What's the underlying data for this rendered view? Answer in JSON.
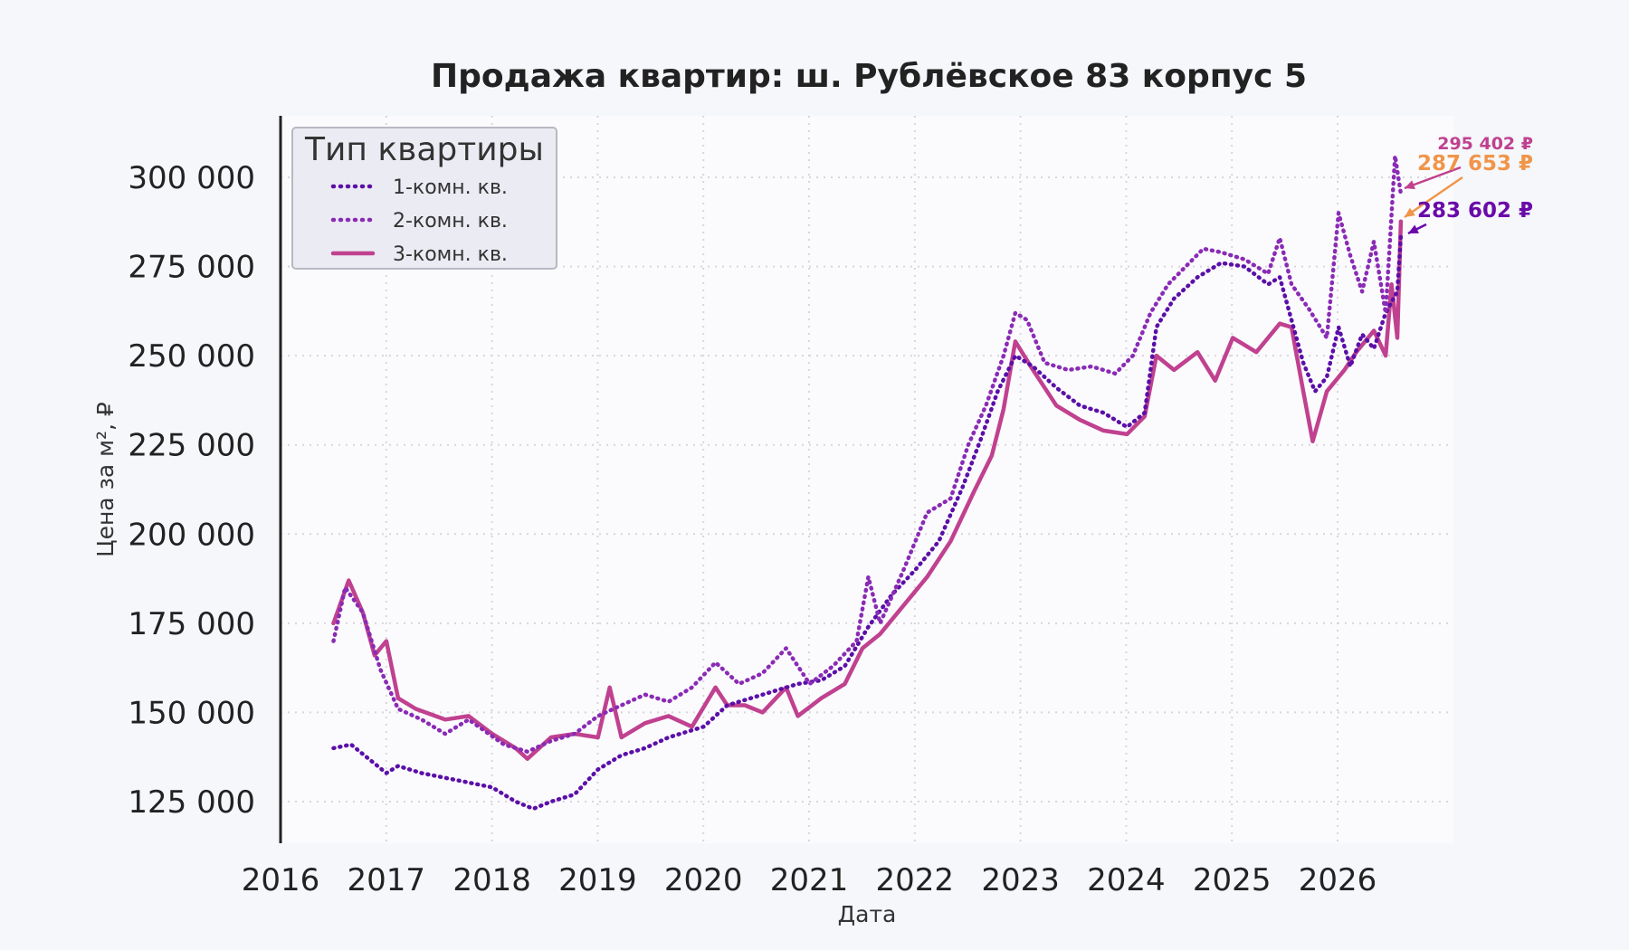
{
  "chart_data": {
    "type": "line",
    "title": "Продажа квартир: ш. Рублёвское 83 корпус 5",
    "xlabel": "Дата",
    "ylabel": "Цена за м², ₽",
    "xlim": [
      2016.0,
      2026.0
    ],
    "ylim": [
      113000,
      315000
    ],
    "x_ticks": [
      "2016",
      "2017",
      "2018",
      "2019",
      "2020",
      "2021",
      "2022",
      "2023",
      "2024",
      "2025",
      "2026"
    ],
    "y_ticks": [
      {
        "value": 125000,
        "label": "125 000"
      },
      {
        "value": 150000,
        "label": "150 000"
      },
      {
        "value": 175000,
        "label": "175 000"
      },
      {
        "value": 200000,
        "label": "200 000"
      },
      {
        "value": 225000,
        "label": "225 000"
      },
      {
        "value": 250000,
        "label": "250 000"
      },
      {
        "value": 275000,
        "label": "275 000"
      },
      {
        "value": 300000,
        "label": "300 000"
      }
    ],
    "grid": true,
    "legend": {
      "title": "Тип квартиры",
      "placement": "top-left"
    },
    "series": [
      {
        "name": "1-комн. кв.",
        "color": "#5b0fa8",
        "style": "dotted",
        "points": [
          [
            2016.45,
            140000
          ],
          [
            2016.6,
            141000
          ],
          [
            2016.75,
            137000
          ],
          [
            2016.9,
            133000
          ],
          [
            2017.0,
            135000
          ],
          [
            2017.2,
            133000
          ],
          [
            2017.5,
            131000
          ],
          [
            2017.8,
            129000
          ],
          [
            2018.0,
            125000
          ],
          [
            2018.15,
            123000
          ],
          [
            2018.3,
            125000
          ],
          [
            2018.5,
            127000
          ],
          [
            2018.7,
            134000
          ],
          [
            2018.9,
            138000
          ],
          [
            2019.1,
            140000
          ],
          [
            2019.3,
            143000
          ],
          [
            2019.6,
            146000
          ],
          [
            2019.8,
            152000
          ],
          [
            2020.0,
            154000
          ],
          [
            2020.2,
            156000
          ],
          [
            2020.4,
            158000
          ],
          [
            2020.6,
            159000
          ],
          [
            2020.8,
            163000
          ],
          [
            2021.0,
            174000
          ],
          [
            2021.2,
            183000
          ],
          [
            2021.4,
            190000
          ],
          [
            2021.6,
            198000
          ],
          [
            2021.8,
            213000
          ],
          [
            2021.95,
            226000
          ],
          [
            2022.1,
            240000
          ],
          [
            2022.25,
            250000
          ],
          [
            2022.4,
            247000
          ],
          [
            2022.6,
            241000
          ],
          [
            2022.8,
            236000
          ],
          [
            2023.0,
            234000
          ],
          [
            2023.2,
            230000
          ],
          [
            2023.35,
            234000
          ],
          [
            2023.45,
            258000
          ],
          [
            2023.6,
            266000
          ],
          [
            2023.8,
            272000
          ],
          [
            2024.0,
            276000
          ],
          [
            2024.2,
            275000
          ],
          [
            2024.4,
            270000
          ],
          [
            2024.5,
            272000
          ],
          [
            2024.6,
            260000
          ],
          [
            2024.7,
            248000
          ],
          [
            2024.8,
            240000
          ],
          [
            2024.9,
            244000
          ],
          [
            2025.0,
            258000
          ],
          [
            2025.1,
            247000
          ],
          [
            2025.2,
            256000
          ],
          [
            2025.3,
            252000
          ],
          [
            2025.4,
            262000
          ],
          [
            2025.5,
            268000
          ],
          [
            2025.53,
            283602
          ]
        ]
      },
      {
        "name": "2-комн. кв.",
        "color": "#8a2bb5",
        "style": "dotted",
        "points": [
          [
            2016.45,
            170000
          ],
          [
            2016.55,
            185000
          ],
          [
            2016.7,
            178000
          ],
          [
            2016.85,
            162000
          ],
          [
            2017.0,
            151000
          ],
          [
            2017.2,
            148000
          ],
          [
            2017.4,
            144000
          ],
          [
            2017.6,
            148000
          ],
          [
            2017.9,
            141000
          ],
          [
            2018.1,
            139000
          ],
          [
            2018.3,
            142000
          ],
          [
            2018.5,
            144000
          ],
          [
            2018.7,
            149000
          ],
          [
            2018.9,
            152000
          ],
          [
            2019.1,
            155000
          ],
          [
            2019.3,
            153000
          ],
          [
            2019.5,
            157000
          ],
          [
            2019.7,
            164000
          ],
          [
            2019.9,
            158000
          ],
          [
            2020.1,
            161000
          ],
          [
            2020.3,
            168000
          ],
          [
            2020.5,
            158000
          ],
          [
            2020.7,
            163000
          ],
          [
            2020.9,
            170000
          ],
          [
            2021.0,
            188000
          ],
          [
            2021.1,
            175000
          ],
          [
            2021.3,
            190000
          ],
          [
            2021.5,
            206000
          ],
          [
            2021.7,
            210000
          ],
          [
            2021.85,
            225000
          ],
          [
            2022.0,
            236000
          ],
          [
            2022.15,
            250000
          ],
          [
            2022.25,
            262000
          ],
          [
            2022.35,
            260000
          ],
          [
            2022.5,
            248000
          ],
          [
            2022.7,
            246000
          ],
          [
            2022.9,
            247000
          ],
          [
            2023.1,
            245000
          ],
          [
            2023.25,
            250000
          ],
          [
            2023.4,
            262000
          ],
          [
            2023.55,
            270000
          ],
          [
            2023.7,
            275000
          ],
          [
            2023.85,
            280000
          ],
          [
            2024.0,
            279000
          ],
          [
            2024.2,
            277000
          ],
          [
            2024.4,
            273000
          ],
          [
            2024.5,
            283000
          ],
          [
            2024.6,
            270000
          ],
          [
            2024.75,
            263000
          ],
          [
            2024.9,
            255000
          ],
          [
            2025.0,
            290000
          ],
          [
            2025.1,
            278000
          ],
          [
            2025.2,
            268000
          ],
          [
            2025.3,
            282000
          ],
          [
            2025.4,
            262000
          ],
          [
            2025.48,
            306000
          ],
          [
            2025.53,
            295402
          ]
        ]
      },
      {
        "name": "3-комн. кв.",
        "color": "#c0418f",
        "style": "solid",
        "points": [
          [
            2016.45,
            175000
          ],
          [
            2016.58,
            187000
          ],
          [
            2016.7,
            178000
          ],
          [
            2016.8,
            166000
          ],
          [
            2016.9,
            170000
          ],
          [
            2017.0,
            154000
          ],
          [
            2017.15,
            151000
          ],
          [
            2017.4,
            148000
          ],
          [
            2017.6,
            149000
          ],
          [
            2017.8,
            144000
          ],
          [
            2018.0,
            140000
          ],
          [
            2018.1,
            137000
          ],
          [
            2018.3,
            143000
          ],
          [
            2018.5,
            144000
          ],
          [
            2018.7,
            143000
          ],
          [
            2018.8,
            157000
          ],
          [
            2018.9,
            143000
          ],
          [
            2019.1,
            147000
          ],
          [
            2019.3,
            149000
          ],
          [
            2019.5,
            146000
          ],
          [
            2019.7,
            157000
          ],
          [
            2019.8,
            152000
          ],
          [
            2019.95,
            152000
          ],
          [
            2020.1,
            150000
          ],
          [
            2020.3,
            157000
          ],
          [
            2020.4,
            149000
          ],
          [
            2020.6,
            154000
          ],
          [
            2020.8,
            158000
          ],
          [
            2020.95,
            168000
          ],
          [
            2021.1,
            172000
          ],
          [
            2021.3,
            180000
          ],
          [
            2021.5,
            188000
          ],
          [
            2021.7,
            198000
          ],
          [
            2021.9,
            212000
          ],
          [
            2022.05,
            222000
          ],
          [
            2022.15,
            235000
          ],
          [
            2022.25,
            254000
          ],
          [
            2022.4,
            246000
          ],
          [
            2022.6,
            236000
          ],
          [
            2022.8,
            232000
          ],
          [
            2023.0,
            229000
          ],
          [
            2023.2,
            228000
          ],
          [
            2023.35,
            233000
          ],
          [
            2023.45,
            250000
          ],
          [
            2023.6,
            246000
          ],
          [
            2023.8,
            251000
          ],
          [
            2023.95,
            243000
          ],
          [
            2024.1,
            255000
          ],
          [
            2024.3,
            251000
          ],
          [
            2024.5,
            259000
          ],
          [
            2024.6,
            258000
          ],
          [
            2024.7,
            240000
          ],
          [
            2024.78,
            226000
          ],
          [
            2024.9,
            240000
          ],
          [
            2025.05,
            246000
          ],
          [
            2025.15,
            251000
          ],
          [
            2025.3,
            257000
          ],
          [
            2025.4,
            250000
          ],
          [
            2025.45,
            270000
          ],
          [
            2025.5,
            255000
          ],
          [
            2025.53,
            287653
          ]
        ]
      }
    ],
    "annotations": [
      {
        "text": "295 402 ₽",
        "color": "#c0418f",
        "series": "2-комн. кв."
      },
      {
        "text": "287 653 ₽",
        "color": "#f0954a",
        "series": "3-комн. кв."
      },
      {
        "text": "283 602 ₽",
        "color": "#6a0aa8",
        "series": "1-комн. кв."
      }
    ]
  }
}
